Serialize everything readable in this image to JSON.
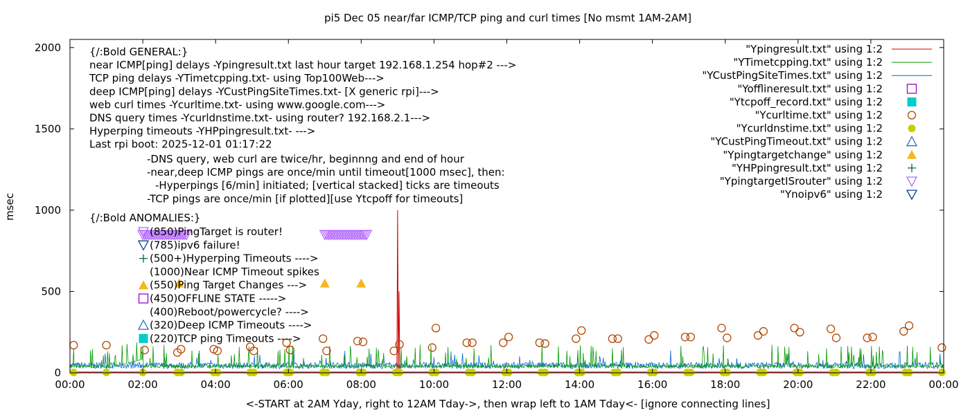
{
  "chart_data": {
    "type": "line",
    "title": "pi5 Dec 05  near/far ICMP/TCP ping and curl times [No msmt 1AM-2AM]",
    "xlabel": "<-START at 2AM Yday, right to 12AM Tday->, then wrap left to 1AM Tday<- [ignore connecting lines]",
    "ylabel": "msec",
    "xlim": [
      0,
      24
    ],
    "ylim": [
      0,
      2050
    ],
    "x_ticks": [
      "00:00",
      "02:00",
      "04:00",
      "06:00",
      "08:00",
      "10:00",
      "12:00",
      "14:00",
      "16:00",
      "18:00",
      "20:00",
      "22:00",
      "00:00"
    ],
    "y_ticks": [
      "0",
      "500",
      "1000",
      "1500",
      "2000"
    ],
    "legend_position": "top-right",
    "legend": [
      {
        "label": "\"Ypingresult.txt\" using 1:2",
        "color": "#cc0000",
        "symbol": "line"
      },
      {
        "label": "\"YTimetcpping.txt\" using 1:2",
        "color": "#009900",
        "symbol": "line"
      },
      {
        "label": "\"YCustPingSiteTimes.txt\" using 1:2",
        "color": "#0066cc",
        "symbol": "line"
      },
      {
        "label": "\"Yofflineresult.txt\" using 1:2",
        "color": "#9900cc",
        "symbol": "open-square"
      },
      {
        "label": "\"Ytcpoff_record.txt\" using 1:2",
        "color": "#00cccc",
        "symbol": "filled-square"
      },
      {
        "label": "\"Ycurltime.txt\" using 1:2",
        "color": "#b34700",
        "symbol": "open-circle"
      },
      {
        "label": "\"Ycurldnstime.txt\" using 1:2",
        "color": "#cccc00",
        "symbol": "filled-circle"
      },
      {
        "label": "\"YCustPingTimeout.txt\" using 1:2",
        "color": "#3366cc",
        "symbol": "open-triangle-up"
      },
      {
        "label": "\"Ypingtargetchange\" using 1:2",
        "color": "#f4b81c",
        "symbol": "filled-triangle-up"
      },
      {
        "label": "\"YHPpingresult.txt\" using 1:2",
        "color": "#006633",
        "symbol": "plus"
      },
      {
        "label": "\"YpingtargetISrouter\" using 1:2",
        "color": "#b366ff",
        "symbol": "open-triangle-down"
      },
      {
        "label": "\"Ynoipv6\" using 1:2",
        "color": "#0d3d8c",
        "symbol": "open-triangle-down"
      }
    ],
    "annotations_general": [
      "{/:Bold GENERAL:}",
      "near ICMP[ping] delays -Ypingresult.txt last hour target 192.168.1.254 hop#2 --->",
      "TCP ping delays -YTimetcpping.txt- using Top100Web--->",
      "deep ICMP[ping] delays -YCustPingSiteTimes.txt- [X generic rpi]--->",
      "web curl times -Ycurltime.txt- using www.google.com--->",
      "DNS query times -Ycurldnstime.txt- using router? 192.168.2.1--->",
      "Hyperping timeouts -YHPpingresult.txt- --->",
      "Last rpi boot: 2025-12-01 01:17:22"
    ],
    "annotations_notes": [
      "-DNS query, web curl are twice/hr, beginnng and end of hour",
      "-near,deep ICMP pings are once/min until timeout[1000 msec], then:",
      "-Hyperpings [6/min] initiated; [vertical stacked] ticks are timeouts",
      "-TCP pings are once/min [if plotted][use Ytcpoff for timeouts]"
    ],
    "annotations_anomalies_title": "{/:Bold ANOMALIES:}",
    "annotations_anomalies": [
      {
        "text": "(850)PingTarget is router!",
        "symbol": "open-triangle-down",
        "color": "#b366ff"
      },
      {
        "text": "(785)ipv6 failure!",
        "symbol": "open-triangle-down",
        "color": "#0d3d8c"
      },
      {
        "text": "(500+)Hyperping Timeouts ---->",
        "symbol": "plus",
        "color": "#006633"
      },
      {
        "text": "(1000)Near ICMP Timeout spikes",
        "symbol": "none",
        "color": ""
      },
      {
        "text": "(550)Ping Target Changes --->",
        "symbol": "filled-triangle-up",
        "color": "#f4b81c"
      },
      {
        "text": "(450)OFFLINE STATE ----->",
        "symbol": "open-square",
        "color": "#9900cc"
      },
      {
        "text": "(400)Reboot/powercycle? ---->",
        "symbol": "none",
        "color": ""
      },
      {
        "text": "(320)Deep ICMP Timeouts ---->",
        "symbol": "open-triangle-up",
        "color": "#3366cc"
      },
      {
        "text": "(220)TCP ping Timeouts ---->",
        "symbol": "filled-square",
        "color": "#00cccc"
      }
    ],
    "series": [
      {
        "name": "\"Ycurltime.txt\" using 1:2",
        "symbol": "open-circle",
        "color": "#b34700",
        "x": [
          0.1,
          1.0,
          2.05,
          2.95,
          3.05,
          3.95,
          4.05,
          4.95,
          5.05,
          5.95,
          6.05,
          6.95,
          7.05,
          7.9,
          8.05,
          8.9,
          9.05,
          9.95,
          10.05,
          10.9,
          11.05,
          11.9,
          12.05,
          12.9,
          13.05,
          13.9,
          14.05,
          14.9,
          15.05,
          15.9,
          16.05,
          16.9,
          17.05,
          17.9,
          18.05,
          18.9,
          19.05,
          19.9,
          20.05,
          20.9,
          21.05,
          21.9,
          22.05,
          22.9,
          23.05,
          23.95
        ],
        "values": [
          170,
          170,
          140,
          125,
          145,
          145,
          135,
          160,
          135,
          185,
          140,
          210,
          135,
          195,
          190,
          135,
          175,
          155,
          275,
          185,
          185,
          185,
          220,
          185,
          180,
          210,
          260,
          210,
          210,
          205,
          230,
          220,
          220,
          275,
          215,
          230,
          255,
          275,
          250,
          270,
          215,
          215,
          220,
          255,
          290,
          155
        ]
      },
      {
        "name": "\"Ycurldnstime.txt\" using 1:2",
        "symbol": "filled-circle",
        "color": "#cccc00",
        "x": [
          0.1,
          1.0,
          2.0,
          2.95,
          3.05,
          3.95,
          4.05,
          4.95,
          5.05,
          5.95,
          6.05,
          6.95,
          7.05,
          7.95,
          8.05,
          8.95,
          9.05,
          9.95,
          10.05,
          10.95,
          11.05,
          11.95,
          12.05,
          12.95,
          13.05,
          13.95,
          14.05,
          14.95,
          15.05,
          15.95,
          16.05,
          16.95,
          17.05,
          17.95,
          18.05,
          18.95,
          19.05,
          19.95,
          20.05,
          20.95,
          21.05,
          21.95,
          22.05,
          22.95,
          23.05,
          23.95
        ],
        "values": [
          2,
          2,
          2,
          2,
          2,
          2,
          2,
          2,
          2,
          2,
          2,
          2,
          2,
          2,
          2,
          2,
          2,
          2,
          2,
          2,
          2,
          2,
          2,
          2,
          2,
          2,
          2,
          2,
          2,
          2,
          2,
          2,
          2,
          2,
          2,
          2,
          2,
          2,
          2,
          2,
          2,
          2,
          2,
          2,
          2,
          2
        ]
      },
      {
        "name": "\"Ypingtargetchange\" using 1:2",
        "symbol": "filled-triangle-up",
        "color": "#f4b81c",
        "x": [
          3.0,
          7.0,
          8.0
        ],
        "values": [
          550,
          550,
          550
        ]
      },
      {
        "name": "\"YpingtargetISrouter\" using 1:2",
        "symbol": "open-triangle-down",
        "color": "#b366ff",
        "x_ranges": [
          [
            2.0,
            3.2
          ],
          [
            7.0,
            8.15
          ]
        ],
        "values": [
          850,
          850
        ]
      },
      {
        "name": "\"Ypingresult.txt\" using 1:2",
        "symbol": "line",
        "color": "#cc0000",
        "x": [
          9.02
        ],
        "values": [
          1000
        ],
        "note": "single near-ICMP timeout spike, baseline near 0"
      }
    ]
  }
}
